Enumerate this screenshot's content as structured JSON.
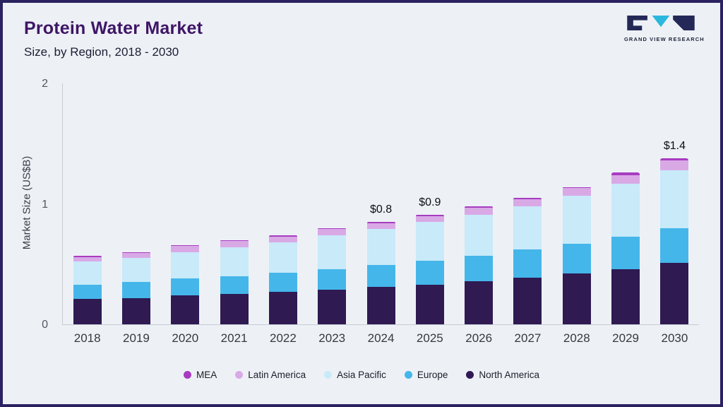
{
  "header": {
    "title": "Protein Water Market",
    "subtitle": "Size, by Region, 2018 - 2030",
    "logo_text": "GRAND VIEW RESEARCH"
  },
  "chart_data": {
    "type": "bar",
    "stacked": true,
    "title": "Protein Water Market Size, by Region, 2018 - 2030",
    "xlabel": "",
    "ylabel": "Market Size (US$B)",
    "ylim": [
      0,
      2
    ],
    "yticks": [
      0,
      1,
      2
    ],
    "grid": false,
    "legend_position": "bottom",
    "categories": [
      "2018",
      "2019",
      "2020",
      "2021",
      "2022",
      "2023",
      "2024",
      "2025",
      "2026",
      "2027",
      "2028",
      "2029",
      "2030"
    ],
    "stack_order": "bottom-to-top",
    "series": [
      {
        "name": "North America",
        "color": "#2f1a52",
        "values": [
          0.21,
          0.22,
          0.24,
          0.25,
          0.27,
          0.29,
          0.31,
          0.33,
          0.36,
          0.39,
          0.42,
          0.46,
          0.51
        ]
      },
      {
        "name": "Europe",
        "color": "#45b6ea",
        "values": [
          0.12,
          0.13,
          0.14,
          0.15,
          0.16,
          0.17,
          0.18,
          0.2,
          0.21,
          0.23,
          0.25,
          0.27,
          0.29
        ]
      },
      {
        "name": "Asia Pacific",
        "color": "#c8eaf9",
        "values": [
          0.19,
          0.2,
          0.22,
          0.24,
          0.25,
          0.28,
          0.3,
          0.32,
          0.34,
          0.36,
          0.4,
          0.44,
          0.48
        ]
      },
      {
        "name": "Latin America",
        "color": "#d9a9e6",
        "values": [
          0.04,
          0.04,
          0.05,
          0.05,
          0.05,
          0.05,
          0.05,
          0.05,
          0.06,
          0.06,
          0.06,
          0.07,
          0.08
        ]
      },
      {
        "name": "MEA",
        "color": "#a73cc0",
        "values": [
          0.01,
          0.01,
          0.01,
          0.01,
          0.01,
          0.01,
          0.01,
          0.01,
          0.01,
          0.01,
          0.01,
          0.02,
          0.02
        ]
      }
    ],
    "annotations": [
      {
        "category": "2024",
        "text": "$0.8"
      },
      {
        "category": "2025",
        "text": "$0.9"
      },
      {
        "category": "2030",
        "text": "$1.4"
      }
    ],
    "legend": [
      "MEA",
      "Latin America",
      "Asia Pacific",
      "Europe",
      "North America"
    ],
    "colors": {
      "accent_title": "#3f1566",
      "frame_border": "#2b2261",
      "background": "#edf1f6"
    }
  }
}
